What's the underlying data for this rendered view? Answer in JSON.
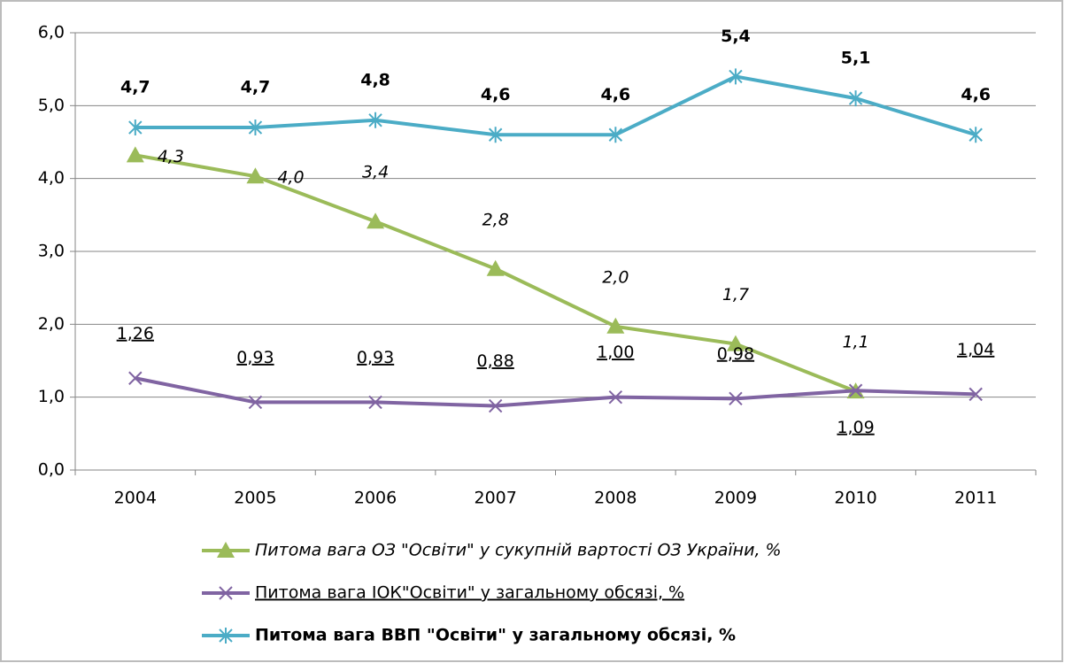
{
  "chart_data": {
    "type": "line",
    "categories": [
      "2004",
      "2005",
      "2006",
      "2007",
      "2008",
      "2009",
      "2010",
      "2011"
    ],
    "series": [
      {
        "name": "Питома вага ОЗ \"Освіти\" у сукупній вартості ОЗ України, %",
        "color": "#9bbb59",
        "marker": "triangle",
        "values": [
          4.32,
          4.03,
          3.41,
          2.76,
          1.97,
          1.73,
          1.08,
          null
        ],
        "value_labels": [
          "4,3",
          "4,0",
          "3,4",
          "2,8",
          "2,0",
          "1,7",
          "1,1",
          null
        ]
      },
      {
        "name": "Питома вага ІОК\"Освіти\" у загальному обсязі, %",
        "color": "#8064a2",
        "marker": "x",
        "values": [
          1.26,
          0.93,
          0.93,
          0.88,
          1.0,
          0.98,
          1.09,
          1.04
        ],
        "value_labels": [
          "1,26",
          "0,93",
          "0,93",
          "0,88",
          "1,00",
          "0,98",
          "1,09",
          "1,04"
        ]
      },
      {
        "name": "Питома вага ВВП \"Освіти\" у загальному обсязі, %",
        "color": "#4bacc6",
        "marker": "star",
        "values": [
          4.7,
          4.7,
          4.8,
          4.6,
          4.6,
          5.4,
          5.1,
          4.6
        ],
        "value_labels": [
          "4,7",
          "4,7",
          "4,8",
          "4,6",
          "4,6",
          "5,4",
          "5,1",
          "4,6"
        ]
      }
    ],
    "ylim": [
      0,
      6
    ],
    "yticks": [
      {
        "value": 0,
        "label": "0,0"
      },
      {
        "value": 1,
        "label": "1,0"
      },
      {
        "value": 2,
        "label": "2,0"
      },
      {
        "value": 3,
        "label": "3,0"
      },
      {
        "value": 4,
        "label": "4,0"
      },
      {
        "value": 5,
        "label": "5,0"
      },
      {
        "value": 6,
        "label": "6,0"
      }
    ],
    "grid": true,
    "legend": "bottom"
  }
}
